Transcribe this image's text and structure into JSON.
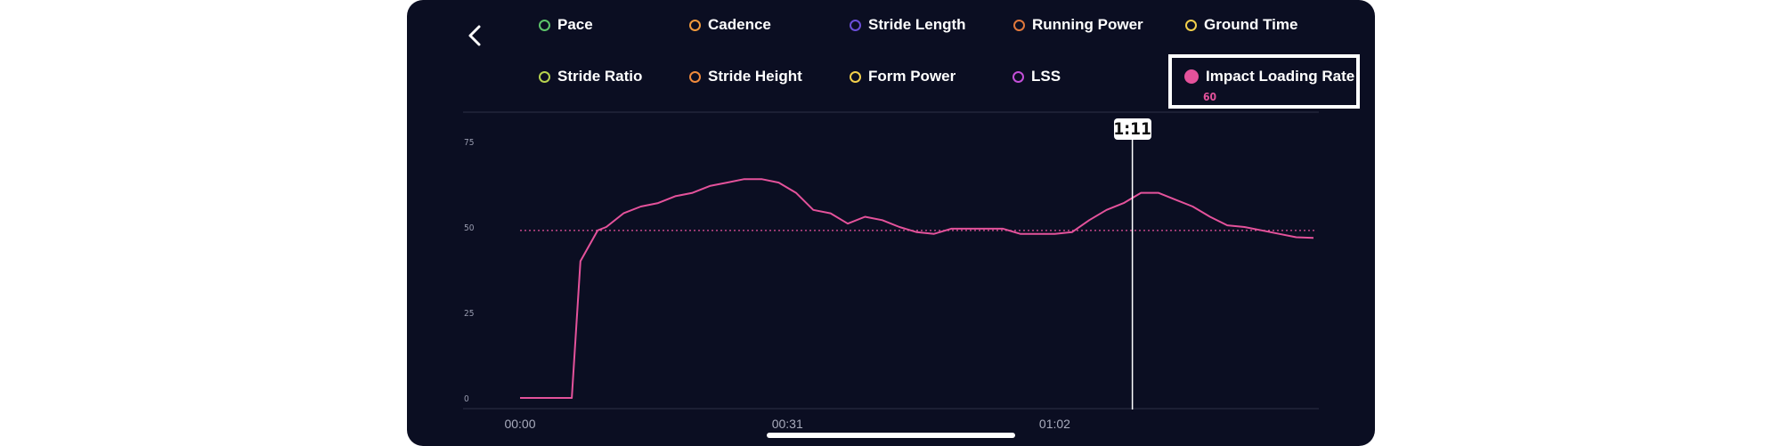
{
  "legend": {
    "items": [
      {
        "label": "Pace",
        "color": "#5cc46a",
        "selected": false
      },
      {
        "label": "Cadence",
        "color": "#f09a3c",
        "selected": false
      },
      {
        "label": "Stride Length",
        "color": "#6b4ed8",
        "selected": false
      },
      {
        "label": "Running Power",
        "color": "#e0783c",
        "selected": false
      },
      {
        "label": "Ground Time",
        "color": "#f2cf4b",
        "selected": false
      },
      {
        "label": "Stride Ratio",
        "color": "#b6d24e",
        "selected": false
      },
      {
        "label": "Stride Height",
        "color": "#f08a3c",
        "selected": false
      },
      {
        "label": "Form Power",
        "color": "#f2cf4b",
        "selected": false
      },
      {
        "label": "LSS",
        "color": "#c34fd8",
        "selected": false
      },
      {
        "label": "Impact Loading Rate",
        "color": "#e4529b",
        "selected": true,
        "value": "60"
      }
    ]
  },
  "chart_data": {
    "type": "line",
    "series": [
      {
        "name": "Impact Loading Rate",
        "color": "#e4529b",
        "x": [
          0,
          3,
          6,
          7,
          9,
          10,
          12,
          14,
          16,
          18,
          20,
          22,
          24,
          26,
          28,
          30,
          32,
          34,
          36,
          38,
          40,
          42,
          44,
          46,
          48,
          50,
          52,
          54,
          56,
          58,
          60,
          62,
          64,
          66,
          68,
          70,
          72,
          74,
          76,
          78,
          80,
          82,
          84,
          86,
          88,
          90,
          92
        ],
        "values": [
          0,
          0,
          0,
          40,
          49,
          50,
          54,
          56,
          57,
          59,
          60,
          62,
          63,
          64,
          64,
          63,
          60,
          55,
          54,
          51,
          53,
          52,
          50,
          48.5,
          48,
          49.5,
          49.5,
          49.5,
          49.5,
          48,
          48,
          48,
          48.5,
          52,
          55,
          57,
          60,
          60,
          58,
          56,
          53,
          50.5,
          50,
          49,
          48,
          47,
          46.8
        ]
      }
    ],
    "x_tick_labels": [
      "00:00",
      "00:31",
      "01:02"
    ],
    "y_ticks": [
      0,
      25,
      50,
      75
    ],
    "ylim": [
      0,
      75
    ],
    "average_line": 49,
    "cursor": {
      "x": 71,
      "label": "1:11"
    },
    "grid": false
  }
}
